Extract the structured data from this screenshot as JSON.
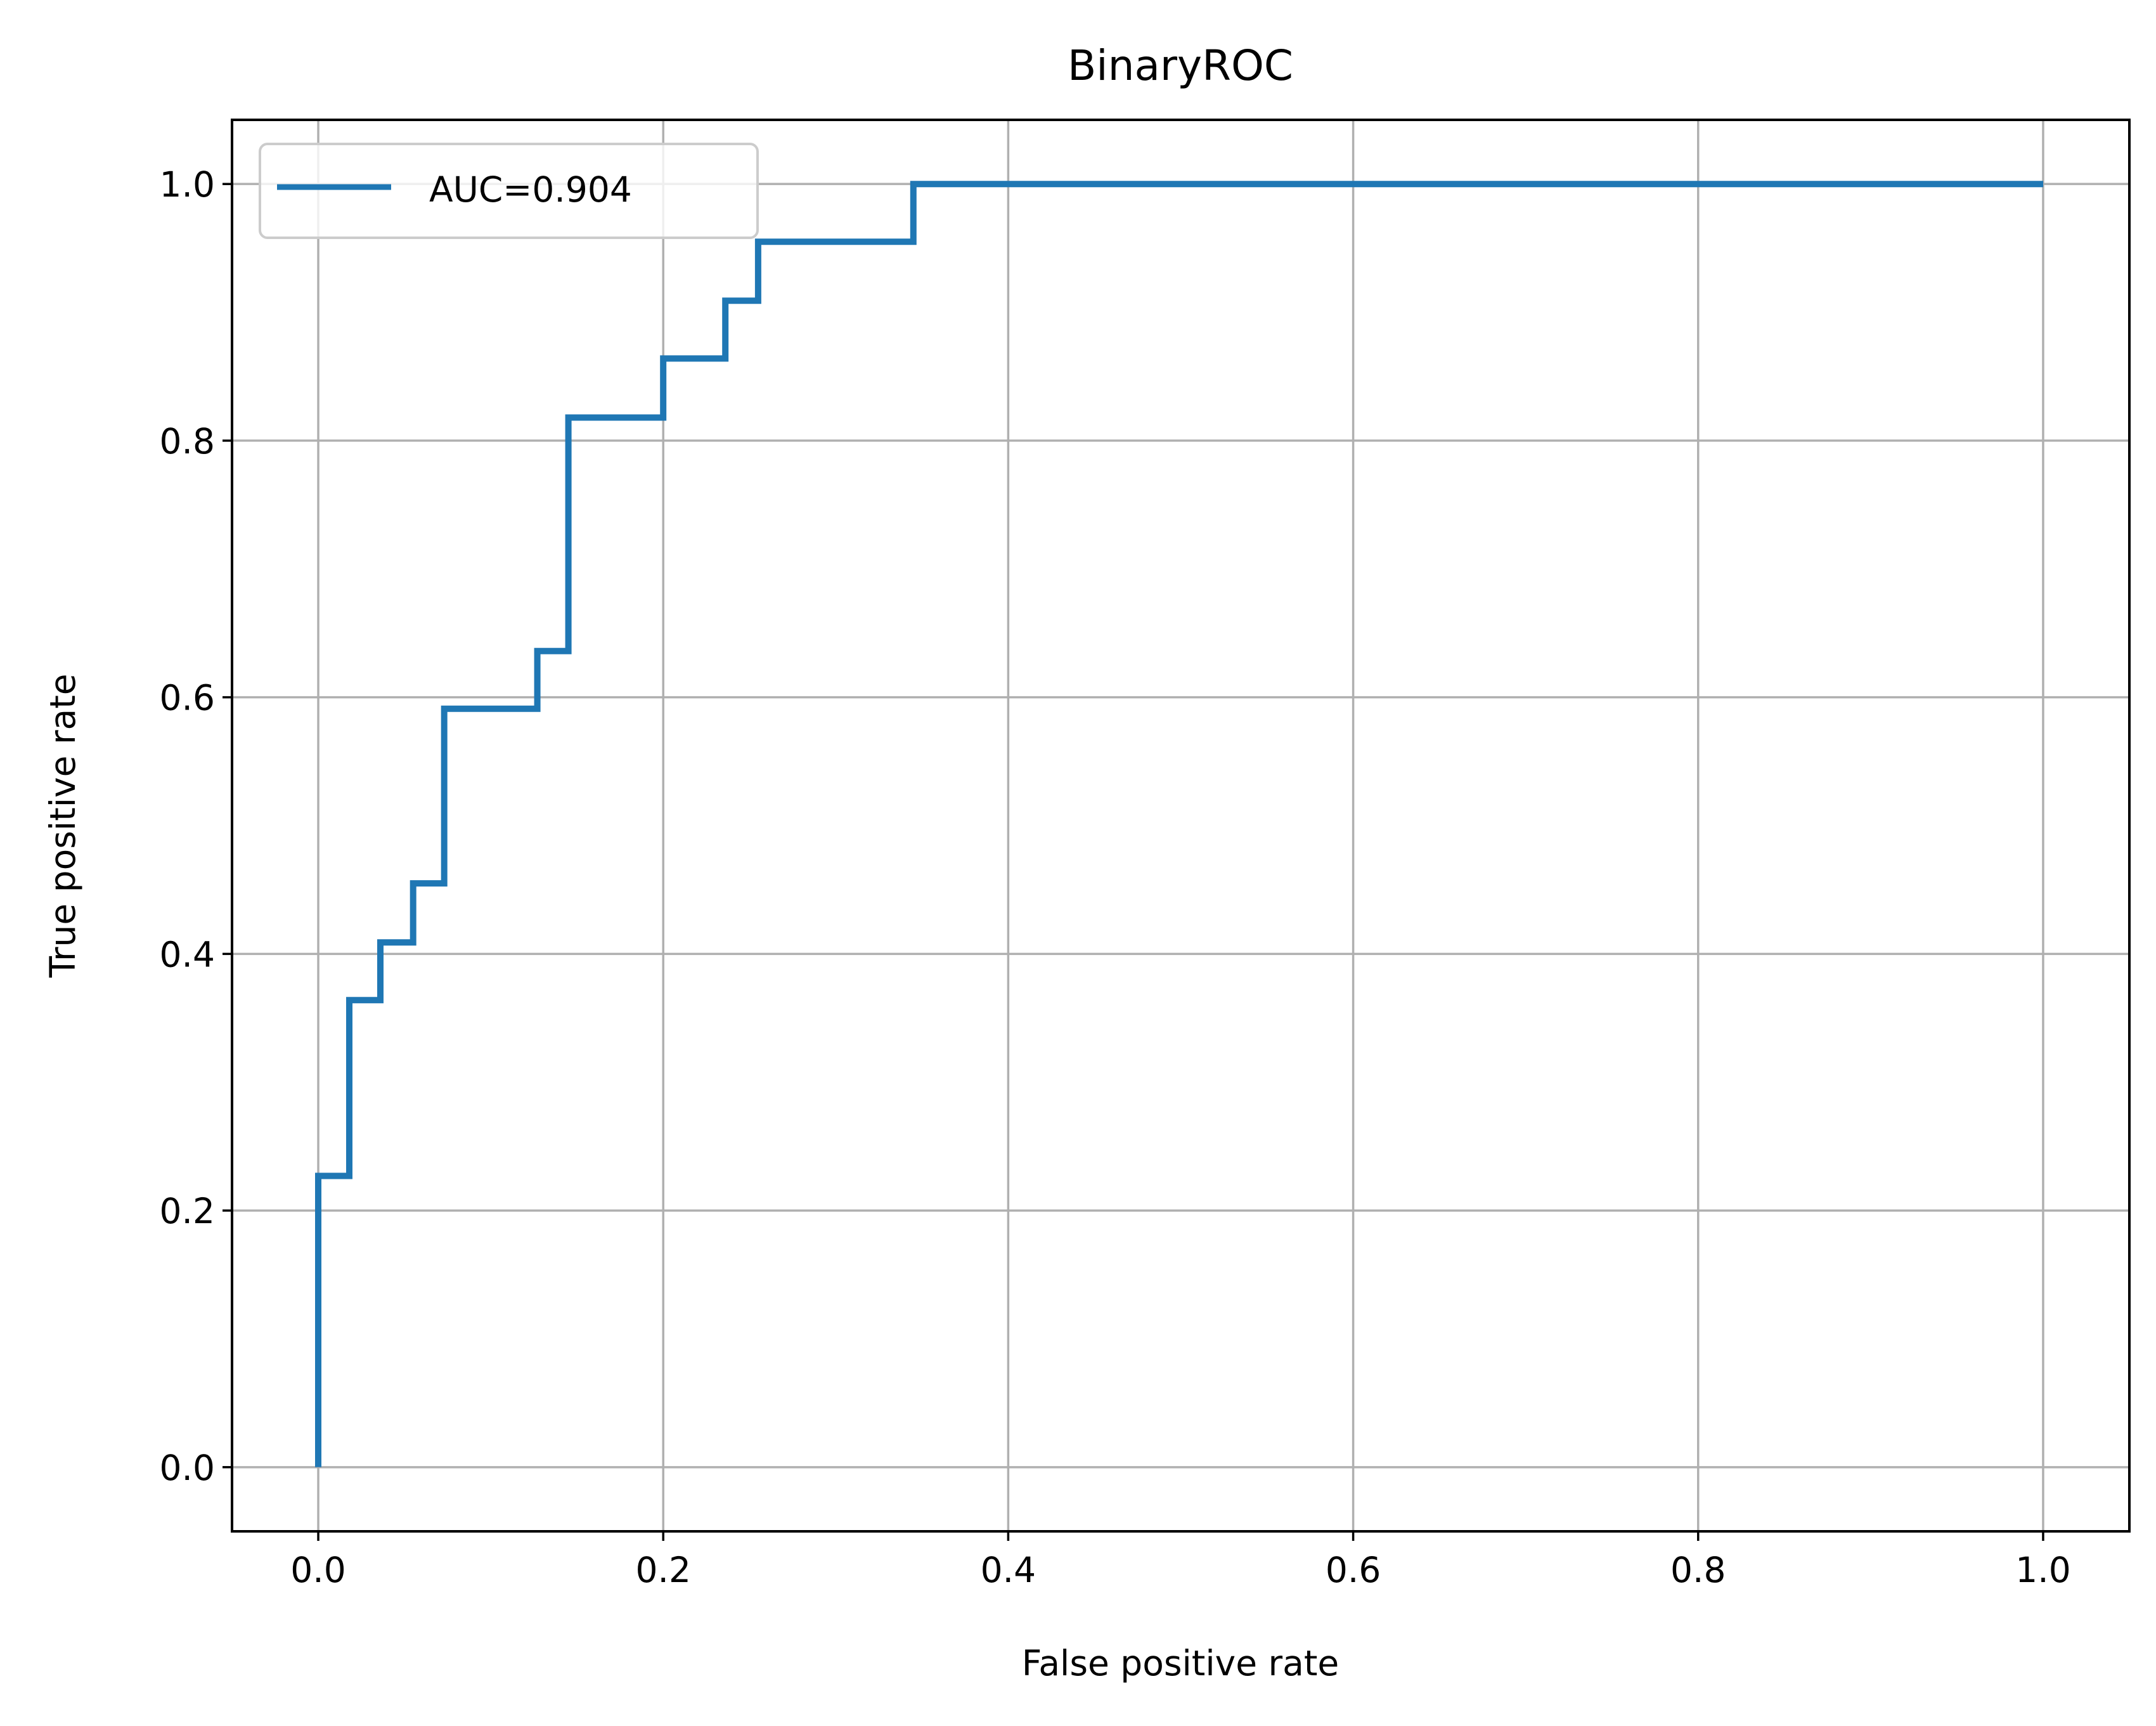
{
  "chart_data": {
    "type": "line",
    "title": "BinaryROC",
    "xlabel": "False positive rate",
    "ylabel": "True positive rate",
    "xlim": [
      -0.05,
      1.05
    ],
    "ylim": [
      -0.05,
      1.05
    ],
    "xticks": [
      0.0,
      0.2,
      0.4,
      0.6,
      0.8,
      1.0
    ],
    "yticks": [
      0.0,
      0.2,
      0.4,
      0.6,
      0.8,
      1.0
    ],
    "xtick_labels": [
      "0.0",
      "0.2",
      "0.4",
      "0.6",
      "0.8",
      "1.0"
    ],
    "ytick_labels": [
      "0.0",
      "0.2",
      "0.4",
      "0.6",
      "0.8",
      "1.0"
    ],
    "grid": true,
    "legend_position": "upper-left",
    "series": [
      {
        "name": "AUC=0.904",
        "color": "#1f77b4",
        "x": [
          0.0,
          0.0,
          0.018,
          0.018,
          0.036,
          0.036,
          0.055,
          0.055,
          0.073,
          0.073,
          0.127,
          0.127,
          0.145,
          0.145,
          0.2,
          0.2,
          0.236,
          0.236,
          0.255,
          0.255,
          0.345,
          0.345,
          1.0
        ],
        "y": [
          0.0,
          0.227,
          0.227,
          0.364,
          0.364,
          0.409,
          0.409,
          0.455,
          0.455,
          0.591,
          0.591,
          0.636,
          0.636,
          0.818,
          0.818,
          0.864,
          0.864,
          0.909,
          0.909,
          0.955,
          0.955,
          1.0,
          1.0
        ]
      }
    ]
  }
}
